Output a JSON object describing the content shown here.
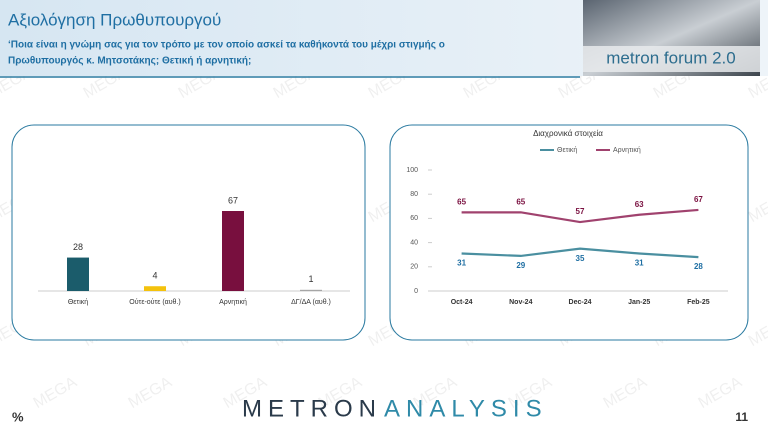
{
  "header": {
    "title": "Αξιολόγηση Πρωθυπουργού",
    "question_lines": [
      "‘Ποια είναι η γνώμη σας για τον τρόπο με τον οποίο ασκεί τα καθήκοντά του μέχρι στιγμής ο",
      "Πρωθυπουργός κ. Μητσοτάκης; Θετική ή αρνητική;"
    ],
    "logo": "metron forum 2.0"
  },
  "watermark": "MEGA",
  "footer": {
    "unit": "%",
    "brand_left": "METRON",
    "brand_right": "ANALYSIS",
    "page": "11"
  },
  "chart_data": [
    {
      "type": "bar",
      "categories": [
        "Θετική",
        "Ούτε-ούτε (αυθ.)",
        "Αρνητική",
        "ΔΓ/ΔΑ (αυθ.)"
      ],
      "values": [
        28,
        4,
        67,
        1
      ],
      "colors": [
        "#1b5c6b",
        "#f4c20d",
        "#780f3e",
        "#a6a6a6"
      ]
    },
    {
      "type": "line",
      "title": "Διαχρονικά στοιχεία",
      "categories": [
        "Oct-24",
        "Nov-24",
        "Dec-24",
        "Jan-25",
        "Feb-25"
      ],
      "series": [
        {
          "name": "Θετική",
          "color": "#4a8fa0",
          "values": [
            31,
            29,
            35,
            31,
            28
          ]
        },
        {
          "name": "Αρνητική",
          "color": "#a0426e",
          "values": [
            65,
            65,
            57,
            63,
            67
          ]
        }
      ],
      "ylim": [
        0,
        100
      ],
      "yticks": [
        0,
        20,
        40,
        60,
        80,
        100
      ],
      "legend": "top"
    }
  ]
}
